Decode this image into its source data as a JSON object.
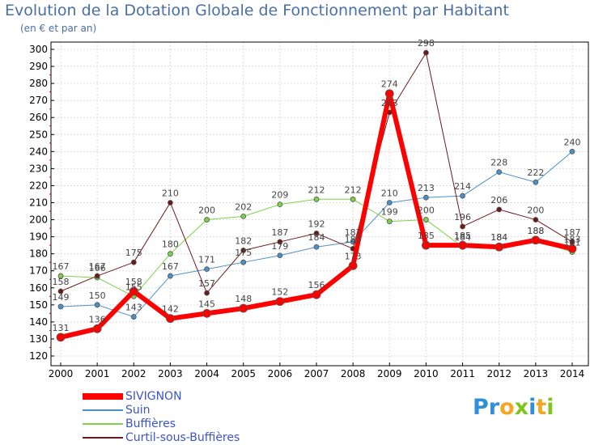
{
  "chart_data": {
    "type": "line",
    "title": "Evolution de la Dotation Globale de Fonctionnement par Habitant",
    "subtitle": "(en € et par an)",
    "xlabel": "",
    "ylabel": "",
    "x": [
      "2000",
      "2001",
      "2002",
      "2003",
      "2004",
      "2005",
      "2006",
      "2007",
      "2008",
      "2009",
      "2010",
      "2011",
      "2012",
      "2013",
      "2014"
    ],
    "ylim": [
      120,
      300
    ],
    "yticks": [
      120,
      130,
      140,
      150,
      160,
      170,
      180,
      190,
      200,
      210,
      220,
      230,
      240,
      250,
      260,
      270,
      280,
      290,
      300
    ],
    "grid": true,
    "legend_position": "bottom-left",
    "series": [
      {
        "name": "Suin",
        "color": "#4a90c8",
        "width": 1,
        "values": [
          149,
          150,
          143,
          167,
          171,
          175,
          179,
          184,
          187,
          210,
          213,
          214,
          228,
          222,
          240
        ]
      },
      {
        "name": "Buffières",
        "color": "#7fd147",
        "width": 1,
        "values": [
          167,
          166,
          155,
          180,
          200,
          202,
          209,
          212,
          212,
          199,
          200,
          184,
          184,
          188,
          181
        ]
      },
      {
        "name": "Curtil-sous-Buffières",
        "color": "#6b1a1a",
        "width": 1,
        "values": [
          158,
          167,
          175,
          210,
          157,
          182,
          187,
          192,
          183,
          263,
          298,
          196,
          206,
          200,
          187
        ]
      },
      {
        "name": "SIVIGNON",
        "color": "#ff0000",
        "width": 6,
        "values": [
          131,
          136,
          158,
          142,
          145,
          148,
          152,
          156,
          173,
          274,
          185,
          185,
          184,
          188,
          183
        ]
      }
    ],
    "data_labels": [
      {
        "series": "Suin",
        "values": [
          "149",
          "150",
          "143",
          "167",
          "171",
          "175",
          "179",
          "184",
          "187",
          "210",
          "213",
          "214",
          "228",
          "222",
          "240"
        ]
      },
      {
        "series": "Buffières",
        "values": [
          "167",
          "166",
          "155",
          "180",
          "200",
          "202",
          "209",
          "212",
          "212",
          "199",
          "200",
          "184",
          "184",
          "188",
          "181"
        ]
      },
      {
        "series": "Curtil-sous-Buffières",
        "values": [
          "158",
          "167",
          "175",
          "210",
          "157",
          "182",
          "187",
          "192",
          "183",
          "263",
          "298",
          "196",
          "206",
          "200",
          "187"
        ]
      },
      {
        "series": "SIVIGNON",
        "values": [
          "131",
          "136",
          "158",
          "142",
          "145",
          "148",
          "152",
          "156",
          "173",
          "274",
          "185",
          "185",
          "184",
          "188",
          "183"
        ]
      }
    ]
  },
  "legend": {
    "items": [
      {
        "label": "SIVIGNON",
        "color": "#ff0000",
        "thickness": 8
      },
      {
        "label": "Suin",
        "color": "#4a90c8",
        "thickness": 2
      },
      {
        "label": "Buffières",
        "color": "#7fd147",
        "thickness": 2
      },
      {
        "label": "Curtil-sous-Buffières",
        "color": "#6b1a1a",
        "thickness": 2
      }
    ]
  },
  "logo": {
    "letters": [
      {
        "ch": "P",
        "color": "#2f8fd8"
      },
      {
        "ch": "r",
        "color": "#2f8fd8"
      },
      {
        "ch": "o",
        "color": "#f5a623"
      },
      {
        "ch": "x",
        "color": "#7fc41f"
      },
      {
        "ch": "i",
        "color": "#2f8fd8"
      },
      {
        "ch": "t",
        "color": "#f5a623"
      },
      {
        "ch": "i",
        "color": "#7fc41f"
      }
    ]
  }
}
